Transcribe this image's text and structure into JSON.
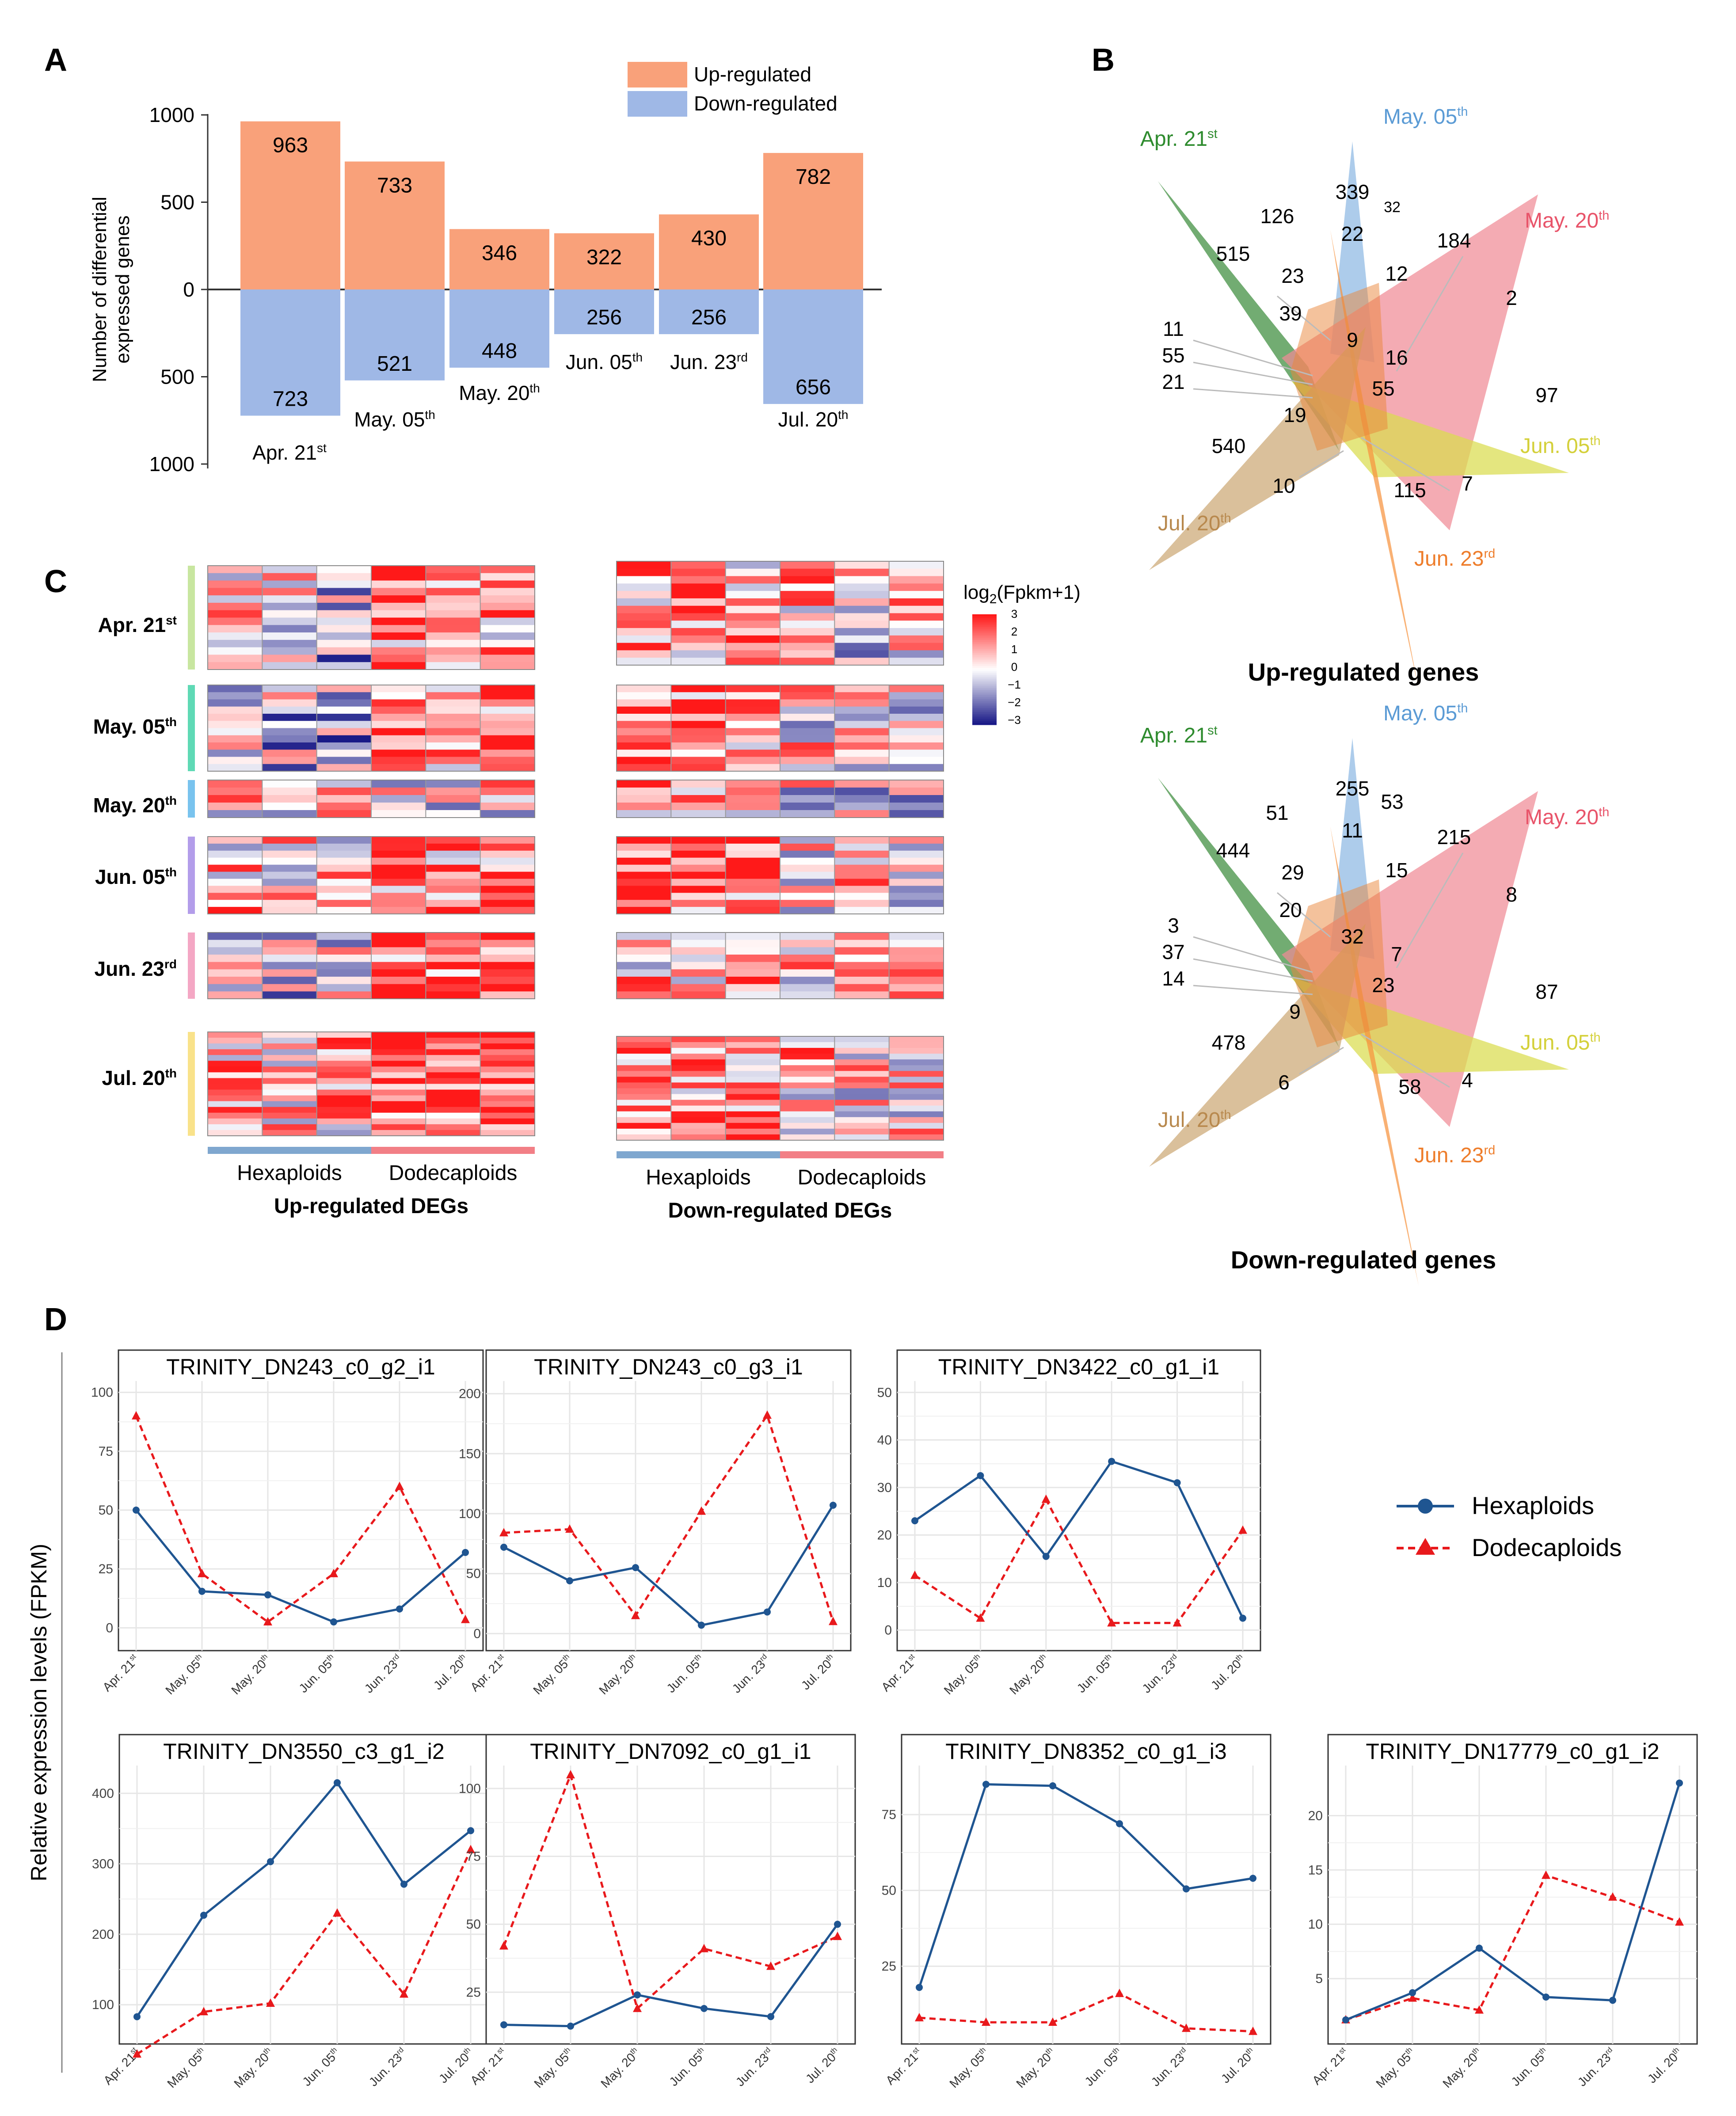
{
  "panels": {
    "a": "A",
    "b": "B",
    "c": "C",
    "d": "D"
  },
  "colors": {
    "up": "#F9A17A",
    "down": "#9FB8E6",
    "hexa": "#1F5591",
    "dodeca": "#E8191C",
    "venn_apr": "#3C8C3C",
    "venn_may05": "#8DB9E3",
    "venn_may20": "#F08A96",
    "venn_jun05": "#DADC4E",
    "venn_jun23": "#F7933E",
    "venn_jul20": "#CCA875",
    "label_apr": "#2E8B2E",
    "label_may05": "#5B9BD5",
    "label_may20": "#E8546A",
    "label_jun05": "#D4D03A",
    "label_jun23": "#EE7D2B",
    "label_jul20": "#B8894E"
  },
  "chart_data": [
    {
      "id": "A",
      "type": "bar",
      "ylabel_line1": "Number of differential",
      "ylabel_line2": "expressed genes",
      "ytick_labels": [
        "1000",
        "500",
        "0",
        "500",
        "1000"
      ],
      "ylim": [
        -1000,
        1000
      ],
      "legend": [
        "Up-regulated",
        "Down-regulated"
      ],
      "categories": [
        {
          "base": "Apr. 21",
          "sup": "st"
        },
        {
          "base": "May. 05",
          "sup": "th"
        },
        {
          "base": "May. 20",
          "sup": "th"
        },
        {
          "base": "Jun. 05",
          "sup": "th"
        },
        {
          "base": "Jun. 23",
          "sup": "rd"
        },
        {
          "base": "Jul. 20",
          "sup": "th"
        }
      ],
      "series": [
        {
          "name": "Up-regulated",
          "values": [
            963,
            733,
            346,
            322,
            430,
            782
          ]
        },
        {
          "name": "Down-regulated",
          "values": [
            723,
            521,
            448,
            256,
            256,
            656
          ]
        }
      ],
      "value_labels_up": [
        "963",
        "733",
        "346",
        "322",
        "430",
        "782"
      ],
      "value_labels_down": [
        "723",
        "521",
        "448",
        "256",
        "256",
        "656"
      ]
    },
    {
      "id": "B-up",
      "type": "venn",
      "title": "Up-regulated genes",
      "sets": [
        {
          "base": "Apr. 21",
          "sup": "st"
        },
        {
          "base": "May. 05",
          "sup": "th"
        },
        {
          "base": "May. 20",
          "sup": "th"
        },
        {
          "base": "Jun. 05",
          "sup": "th"
        },
        {
          "base": "Jun. 23",
          "sup": "rd"
        },
        {
          "base": "Jul. 20",
          "sup": "th"
        }
      ],
      "counts": [
        "515",
        "126",
        "339",
        "32",
        "184",
        "22",
        "23",
        "12",
        "39",
        "9",
        "2",
        "11",
        "55",
        "21",
        "16",
        "97",
        "55",
        "19",
        "540",
        "10",
        "115",
        "7"
      ]
    },
    {
      "id": "B-down",
      "type": "venn",
      "title": "Down-regulated genes",
      "sets": [
        {
          "base": "Apr. 21",
          "sup": "st"
        },
        {
          "base": "May. 05",
          "sup": "th"
        },
        {
          "base": "May. 20",
          "sup": "th"
        },
        {
          "base": "Jun. 05",
          "sup": "th"
        },
        {
          "base": "Jun. 23",
          "sup": "rd"
        },
        {
          "base": "Jul. 20",
          "sup": "th"
        }
      ],
      "counts": [
        "444",
        "51",
        "255",
        "53",
        "215",
        "11",
        "29",
        "15",
        "20",
        "32",
        "8",
        "3",
        "37",
        "14",
        "7",
        "87",
        "23",
        "9",
        "478",
        "6",
        "58",
        "4"
      ]
    },
    {
      "id": "C",
      "type": "heatmap",
      "legend_title_pre": "log",
      "legend_title_sub": "2",
      "legend_title_post": "(Fpkm+1)",
      "legend_ticks": [
        "3",
        "2",
        "1",
        "0",
        "−1",
        "−2",
        "−3"
      ],
      "rows": [
        {
          "base": "Apr. 21",
          "sup": "st"
        },
        {
          "base": "May. 05",
          "sup": "th"
        },
        {
          "base": "May. 20",
          "sup": "th"
        },
        {
          "base": "Jun. 05",
          "sup": "th"
        },
        {
          "base": "Jun. 23",
          "sup": "rd"
        },
        {
          "base": "Jul. 20",
          "sup": "th"
        }
      ],
      "groups": [
        "Hexaploids",
        "Dodecaploids"
      ],
      "titles": [
        "Up-regulated DEGs",
        "Down-regulated DEGs"
      ]
    },
    {
      "id": "D",
      "type": "line",
      "ylabel": "Relative expression levels (FPKM)",
      "legend": [
        "Hexaploids",
        "Dodecaploids"
      ],
      "x_labels": [
        {
          "base": "Apr. 21",
          "sup": "st"
        },
        {
          "base": "May. 05",
          "sup": "th"
        },
        {
          "base": "May. 20",
          "sup": "th"
        },
        {
          "base": "Jun. 05",
          "sup": "th"
        },
        {
          "base": "Jun. 23",
          "sup": "rd"
        },
        {
          "base": "Jul. 20",
          "sup": "th"
        }
      ],
      "plots": [
        {
          "title": "TRINITY_DN243_c0_g2_i1",
          "ylim": [
            -5,
            102
          ],
          "yticks": [
            0,
            25,
            50,
            75,
            100
          ],
          "hexa": [
            50,
            15.5,
            14,
            2.5,
            8,
            32
          ],
          "dodeca": [
            90,
            23,
            2.5,
            23,
            60,
            3.5
          ]
        },
        {
          "title": "TRINITY_DN243_c0_g3_i1",
          "ylim": [
            -5,
            205
          ],
          "yticks": [
            0,
            50,
            100,
            150,
            200
          ],
          "hexa": [
            72,
            44,
            55,
            7,
            18,
            107
          ],
          "dodeca": [
            84,
            87,
            15,
            102,
            182,
            10
          ]
        },
        {
          "title": "TRINITY_DN3422_c0_g1_i1",
          "ylim": [
            -2,
            51
          ],
          "yticks": [
            0,
            10,
            20,
            30,
            40,
            50
          ],
          "hexa": [
            23,
            32.5,
            15.5,
            35.5,
            31,
            2.5
          ],
          "dodeca": [
            11.5,
            2.5,
            27.5,
            1.5,
            1.5,
            21
          ]
        },
        {
          "title": "TRINITY_DN3550_c3_g1_i2",
          "ylim": [
            60,
            430
          ],
          "yticks": [
            100,
            200,
            300,
            400
          ],
          "hexa": [
            83,
            227,
            303,
            415,
            271,
            347
          ],
          "dodeca": [
            30,
            90,
            102,
            230,
            115,
            320
          ]
        },
        {
          "title": "TRINITY_DN7092_c0_g1_i1",
          "ylim": [
            10,
            106
          ],
          "yticks": [
            25,
            50,
            75,
            100
          ],
          "hexa": [
            13,
            12.5,
            24,
            19,
            16,
            50
          ],
          "dodeca": [
            42,
            105,
            19,
            41,
            34.5,
            45.5
          ]
        },
        {
          "title": "TRINITY_DN8352_c0_g1_i3",
          "ylim": [
            3,
            89
          ],
          "yticks": [
            25,
            50,
            75
          ],
          "hexa": [
            18,
            85,
            84.5,
            72,
            50.5,
            54
          ],
          "dodeca": [
            8,
            6.5,
            6.5,
            16,
            4.5,
            3.5
          ]
        },
        {
          "title": "TRINITY_DN17779_c0_g1_i2",
          "ylim": [
            0,
            24
          ],
          "yticks": [
            5,
            10,
            15,
            20
          ],
          "hexa": [
            1.2,
            3.7,
            7.8,
            3.3,
            3,
            23
          ],
          "dodeca": [
            1.2,
            3.2,
            2.1,
            14.5,
            12.5,
            10.2
          ]
        }
      ]
    }
  ]
}
